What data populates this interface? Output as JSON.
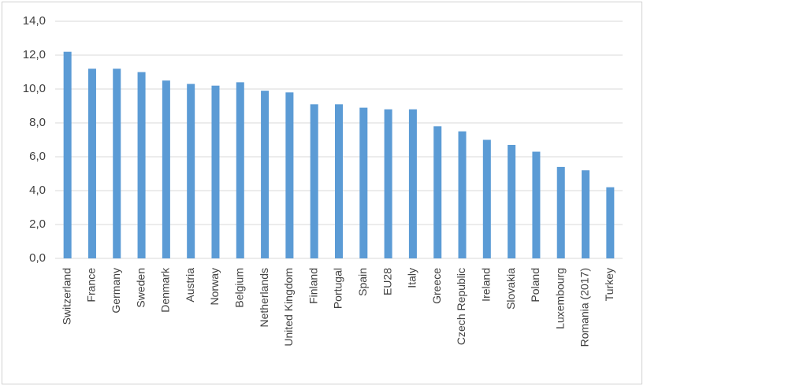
{
  "chart_data": {
    "type": "bar",
    "categories": [
      "Switzerland",
      "France",
      "Germany",
      "Sweden",
      "Denmark",
      "Austria",
      "Norway",
      "Belgium",
      "Netherlands",
      "United Kingdom",
      "Finland",
      "Portugal",
      "Spain",
      "EU28",
      "Italy",
      "Greece",
      "Czech Republic",
      "Ireland",
      "Slovakia",
      "Poland",
      "Luxembourg",
      "Romania (2017)",
      "Turkey"
    ],
    "values": [
      12.2,
      11.2,
      11.2,
      11.0,
      10.5,
      10.3,
      10.2,
      10.4,
      9.9,
      9.8,
      9.1,
      9.1,
      8.9,
      8.8,
      8.8,
      7.8,
      7.5,
      7.0,
      6.7,
      6.3,
      5.4,
      5.2,
      4.2
    ],
    "color": "#5b9bd5",
    "ylim": [
      0,
      14
    ],
    "yticks": [
      {
        "value": 0,
        "label": "0,0"
      },
      {
        "value": 2,
        "label": "2,0"
      },
      {
        "value": 4,
        "label": "4,0"
      },
      {
        "value": 6,
        "label": "6,0"
      },
      {
        "value": 8,
        "label": "8,0"
      },
      {
        "value": 10,
        "label": "10,0"
      },
      {
        "value": 12,
        "label": "12,0"
      },
      {
        "value": 14,
        "label": "14,0"
      }
    ],
    "grid": true
  }
}
